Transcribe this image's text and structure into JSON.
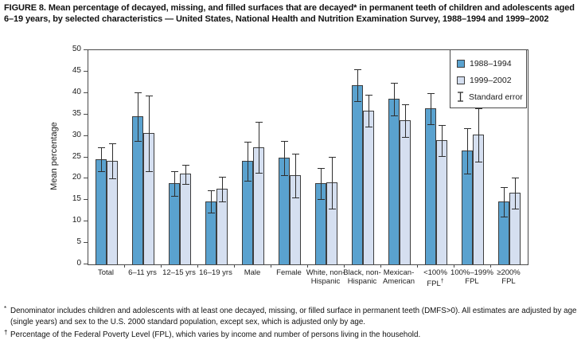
{
  "title": "FIGURE 8. Mean percentage of decayed, missing, and filled surfaces that are decayed* in permanent teeth of children and adolescents aged 6–19 years, by selected characteristics — United States, National Health and Nutrition Examination Survey, 1988–1994 and 1999–2002",
  "chart_data": {
    "type": "bar",
    "title": "",
    "xlabel": "",
    "ylabel": "Mean percentage",
    "ylim": [
      0,
      50
    ],
    "ytick_step": 5,
    "grid": false,
    "legend_position": "top-right-inside-box",
    "legend": [
      {
        "label": "1988–1994",
        "swatch": "dark"
      },
      {
        "label": "1999–2002",
        "swatch": "light"
      },
      {
        "label": "Standard error",
        "swatch": "error-bar"
      }
    ],
    "categories": [
      [
        "Total"
      ],
      [
        "6–11 yrs"
      ],
      [
        "12–15 yrs"
      ],
      [
        "16–19 yrs"
      ],
      [
        "Male"
      ],
      [
        "Female"
      ],
      [
        "White, non-",
        "Hispanic"
      ],
      [
        "Black, non-",
        "Hispanic"
      ],
      [
        "Mexican-",
        "American"
      ],
      [
        "<100%",
        "FPL†"
      ],
      [
        "100%–199%",
        "FPL"
      ],
      [
        "≥200%",
        "FPL"
      ]
    ],
    "series": [
      {
        "name": "1988–1994",
        "color": "#5aa2cf",
        "values": [
          24.6,
          34.6,
          18.9,
          14.7,
          24.2,
          24.9,
          19.0,
          41.9,
          38.7,
          36.5,
          26.5,
          14.7
        ],
        "standard_error": [
          2.9,
          5.8,
          3.0,
          2.7,
          4.6,
          4.1,
          3.7,
          3.8,
          3.9,
          3.7,
          5.4,
          3.6
        ]
      },
      {
        "name": "1999–2002",
        "color": "#d5dff0",
        "values": [
          24.2,
          30.7,
          21.1,
          17.6,
          27.4,
          20.8,
          19.2,
          35.9,
          33.7,
          29.0,
          30.3,
          16.8
        ],
        "standard_error": [
          4.2,
          8.9,
          2.4,
          3.0,
          6.1,
          5.2,
          6.1,
          3.8,
          3.9,
          3.8,
          6.3,
          3.7
        ]
      }
    ]
  },
  "footnotes": [
    {
      "marker": "*",
      "text": "Denominator includes children and adolescents with at least one decayed, missing, or filled surface in permanent teeth (DMFS>0). All estimates are adjusted by age (single years) and sex to the U.S. 2000 standard population, except sex, which is adjusted only by age."
    },
    {
      "marker": "†",
      "text": "Percentage of the Federal Poverty Level (FPL), which varies by income and number of persons living in the household."
    }
  ],
  "colors": {
    "bar_dark": "#5aa2cf",
    "bar_light": "#d5dff0",
    "bar_border": "#3d3d3d",
    "error_bar": "#2e2e2e",
    "axis": "#4a4a4a",
    "text": "#1c1c1c"
  }
}
